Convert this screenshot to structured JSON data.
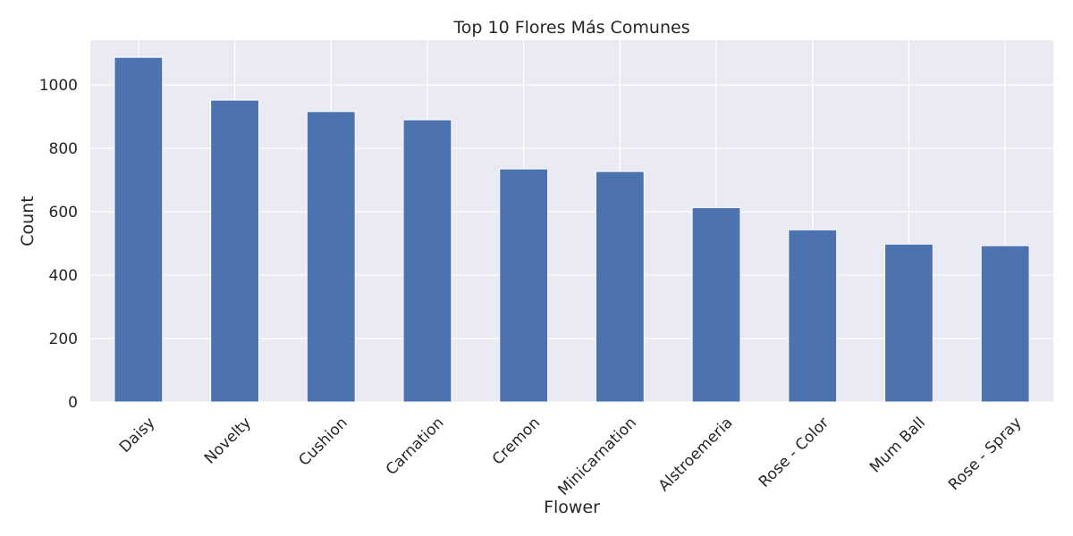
{
  "chart_data": {
    "type": "bar",
    "title": "Top 10 Flores Más Comunes",
    "xlabel": "Flower",
    "ylabel": "Count",
    "categories": [
      "Daisy",
      "Novelty",
      "Cushion",
      "Carnation",
      "Cremon",
      "Minicarnation",
      "Alstroemeria",
      "Rose - Color",
      "Mum Ball",
      "Rose - Spray"
    ],
    "values": [
      1087,
      952,
      916,
      890,
      735,
      727,
      613,
      543,
      498,
      493
    ],
    "ylim": [
      0,
      1141
    ],
    "yticks": [
      0,
      200,
      400,
      600,
      800,
      1000
    ],
    "grid": true,
    "legend": "none",
    "colors": {
      "bar": "#4c72b0",
      "background": "#eaeaf2",
      "grid": "#ffffff"
    }
  }
}
